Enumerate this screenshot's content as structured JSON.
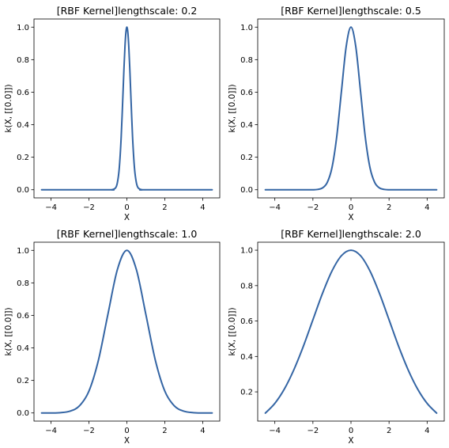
{
  "figure": {
    "colors": {
      "line": "#3465a4"
    }
  },
  "chart_data": [
    {
      "type": "line",
      "title": "[RBF Kernel]lengthscale: 0.2",
      "xlabel": "X",
      "ylabel": "k(X, [[0.0]])",
      "lengthscale": 0.2,
      "xlim": [
        -4.9,
        4.9
      ],
      "ylim": [
        -0.05,
        1.05
      ],
      "xticks": [
        -4,
        -2,
        0,
        2,
        4
      ],
      "yticks": [
        0.0,
        0.2,
        0.4,
        0.6,
        0.8,
        1.0
      ],
      "xtick_labels": [
        "−4",
        "−2",
        "0",
        "2",
        "4"
      ],
      "ytick_labels": [
        "0.0",
        "0.2",
        "0.4",
        "0.6",
        "0.8",
        "1.0"
      ],
      "series": [
        {
          "x": [
            -4.5,
            -1.0,
            -0.8,
            -0.6,
            -0.5,
            -0.4,
            -0.3,
            -0.2,
            -0.15,
            -0.1,
            -0.05,
            0.0,
            0.05,
            0.1,
            0.15,
            0.2,
            0.3,
            0.4,
            0.5,
            0.6,
            0.8,
            1.0,
            4.5
          ],
          "y": [
            0.0,
            0.0,
            0.0,
            0.011,
            0.044,
            0.135,
            0.325,
            0.607,
            0.755,
            0.882,
            0.969,
            1.0,
            0.969,
            0.882,
            0.755,
            0.607,
            0.325,
            0.135,
            0.044,
            0.011,
            0.0,
            0.0,
            0.0
          ]
        }
      ]
    },
    {
      "type": "line",
      "title": "[RBF Kernel]lengthscale: 0.5",
      "xlabel": "X",
      "ylabel": "k(X, [[0.0]])",
      "lengthscale": 0.5,
      "xlim": [
        -4.9,
        4.9
      ],
      "ylim": [
        -0.05,
        1.05
      ],
      "xticks": [
        -4,
        -2,
        0,
        2,
        4
      ],
      "yticks": [
        0.0,
        0.2,
        0.4,
        0.6,
        0.8,
        1.0
      ],
      "xtick_labels": [
        "−4",
        "−2",
        "0",
        "2",
        "4"
      ],
      "ytick_labels": [
        "0.0",
        "0.2",
        "0.4",
        "0.6",
        "0.8",
        "1.0"
      ],
      "series": [
        {
          "x": [
            -4.5,
            -2.5,
            -2.0,
            -1.75,
            -1.5,
            -1.25,
            -1.0,
            -0.75,
            -0.5,
            -0.25,
            0.0,
            0.25,
            0.5,
            0.75,
            1.0,
            1.25,
            1.5,
            1.75,
            2.0,
            2.5,
            4.5
          ],
          "y": [
            0.0,
            0.0,
            0.0,
            0.002,
            0.011,
            0.044,
            0.135,
            0.325,
            0.607,
            0.882,
            1.0,
            0.882,
            0.607,
            0.325,
            0.135,
            0.044,
            0.011,
            0.002,
            0.0,
            0.0,
            0.0
          ]
        }
      ]
    },
    {
      "type": "line",
      "title": "[RBF Kernel]lengthscale: 1.0",
      "xlabel": "X",
      "ylabel": "k(X, [[0.0]])",
      "lengthscale": 1.0,
      "xlim": [
        -4.9,
        4.9
      ],
      "ylim": [
        -0.05,
        1.05
      ],
      "xticks": [
        -4,
        -2,
        0,
        2,
        4
      ],
      "yticks": [
        0.0,
        0.2,
        0.4,
        0.6,
        0.8,
        1.0
      ],
      "xtick_labels": [
        "−4",
        "−2",
        "0",
        "2",
        "4"
      ],
      "ytick_labels": [
        "0.0",
        "0.2",
        "0.4",
        "0.6",
        "0.8",
        "1.0"
      ],
      "series": [
        {
          "x": [
            -4.5,
            -4.0,
            -3.5,
            -3.0,
            -2.5,
            -2.0,
            -1.5,
            -1.0,
            -0.5,
            0.0,
            0.5,
            1.0,
            1.5,
            2.0,
            2.5,
            3.0,
            3.5,
            4.0,
            4.5
          ],
          "y": [
            0.0,
            0.0,
            0.002,
            0.011,
            0.044,
            0.135,
            0.325,
            0.607,
            0.882,
            1.0,
            0.882,
            0.607,
            0.325,
            0.135,
            0.044,
            0.011,
            0.002,
            0.0,
            0.0
          ]
        }
      ]
    },
    {
      "type": "line",
      "title": "[RBF Kernel]lengthscale: 2.0",
      "xlabel": "X",
      "ylabel": "k(X, [[0.0]])",
      "lengthscale": 2.0,
      "xlim": [
        -4.9,
        4.9
      ],
      "ylim": [
        0.035,
        1.045
      ],
      "xticks": [
        -4,
        -2,
        0,
        2,
        4
      ],
      "yticks": [
        0.2,
        0.4,
        0.6,
        0.8,
        1.0
      ],
      "xtick_labels": [
        "−4",
        "−2",
        "0",
        "2",
        "4"
      ],
      "ytick_labels": [
        "0.2",
        "0.4",
        "0.6",
        "0.8",
        "1.0"
      ],
      "series": [
        {
          "x": [
            -4.5,
            -4.0,
            -3.5,
            -3.0,
            -2.5,
            -2.0,
            -1.5,
            -1.0,
            -0.5,
            0.0,
            0.5,
            1.0,
            1.5,
            2.0,
            2.5,
            3.0,
            3.5,
            4.0,
            4.5
          ],
          "y": [
            0.08,
            0.135,
            0.216,
            0.325,
            0.458,
            0.607,
            0.755,
            0.882,
            0.969,
            1.0,
            0.969,
            0.882,
            0.755,
            0.607,
            0.458,
            0.325,
            0.216,
            0.135,
            0.08
          ]
        }
      ]
    }
  ]
}
